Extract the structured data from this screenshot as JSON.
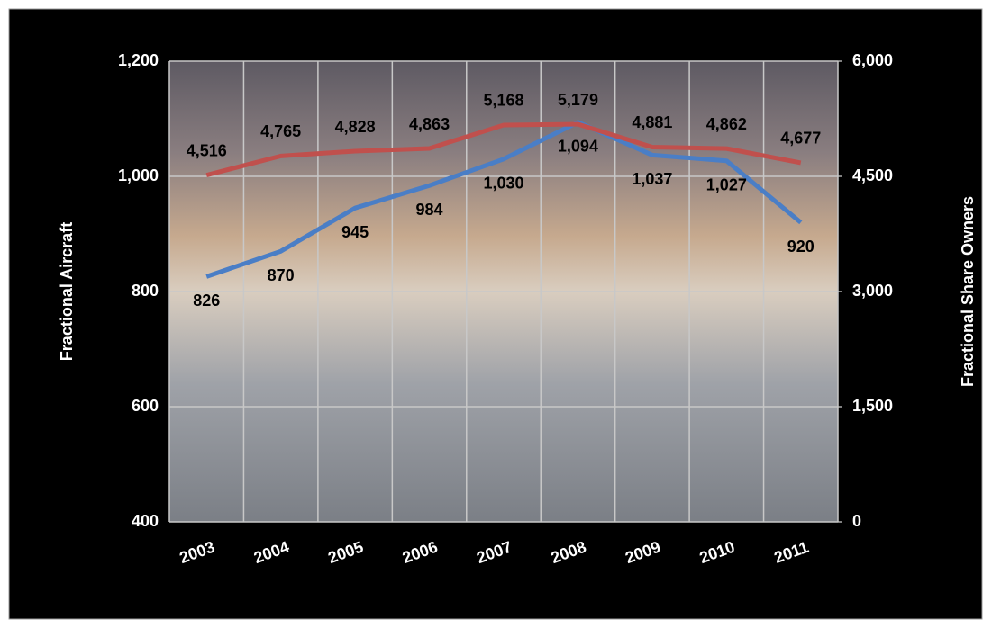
{
  "chart_data": {
    "type": "line",
    "categories": [
      "2003",
      "2004",
      "2005",
      "2006",
      "2007",
      "2008",
      "2009",
      "2010",
      "2011"
    ],
    "series": [
      {
        "color": "#4a7ec6",
        "values": [
          826,
          870,
          945,
          984,
          1030,
          1094,
          1037,
          1027,
          920
        ],
        "value_labels": [
          "826",
          "870",
          "945",
          "984",
          "1,030",
          "1,094",
          "1,037",
          "1,027",
          "920"
        ]
      },
      {
        "color": "#c0504d",
        "axis": "y2",
        "values": [
          4516,
          4765,
          4828,
          4863,
          5168,
          5179,
          4881,
          4862,
          4677
        ],
        "value_labels": [
          "4,516",
          "4,765",
          "4,828",
          "4,863",
          "5,168",
          "5,179",
          "4,881",
          "4,862",
          "4,677"
        ]
      }
    ],
    "y_label": "Fractional Aircraft",
    "y2_label": "Fractional Share Owners",
    "ylim": [
      400,
      1200
    ],
    "yticks": [
      400,
      600,
      800,
      {
        "value": 1000,
        "label": "1,000"
      },
      {
        "value": 1200,
        "label": "1,200"
      }
    ],
    "y2lim": [
      0,
      6000
    ],
    "y2ticks": [
      0,
      {
        "value": 1500,
        "label": "1,500"
      },
      {
        "value": 3000,
        "label": "3,000"
      },
      {
        "value": 4500,
        "label": "4,500"
      },
      {
        "value": 6000,
        "label": "6,000"
      }
    ],
    "grid": true
  }
}
